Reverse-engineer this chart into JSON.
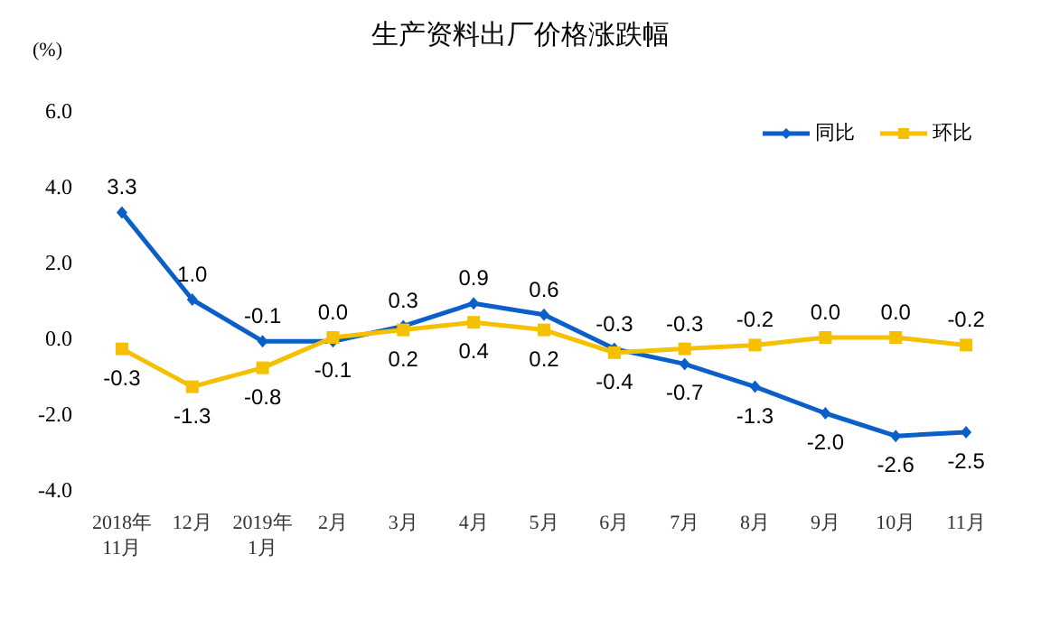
{
  "chart_data": {
    "type": "line",
    "title": "生产资料出厂价格涨跌幅",
    "ylabel": "(%)",
    "categories": [
      "2018年\n11月",
      "12月",
      "2019年\n1月",
      "2月",
      "3月",
      "4月",
      "5月",
      "6月",
      "7月",
      "8月",
      "9月",
      "10月",
      "11月"
    ],
    "series": [
      {
        "name": "同比",
        "color": "#0a5fc8",
        "marker": "diamond",
        "values": [
          3.3,
          1.0,
          -0.1,
          -0.1,
          0.3,
          0.9,
          0.6,
          -0.3,
          -0.7,
          -1.3,
          -2.0,
          -2.6,
          -2.5
        ],
        "value_labels": [
          "3.3",
          "1.0",
          "-0.1",
          "-0.1",
          "0.3",
          "0.9",
          "0.6",
          "-0.3",
          "-0.7",
          "-1.3",
          "-2.0",
          "-2.6",
          "-2.5"
        ]
      },
      {
        "name": "环比",
        "color": "#f5c000",
        "marker": "square",
        "values": [
          -0.3,
          -1.3,
          -0.8,
          0.0,
          0.2,
          0.4,
          0.2,
          -0.4,
          -0.3,
          -0.2,
          0.0,
          0.0,
          -0.2
        ],
        "value_labels": [
          "-0.3",
          "-1.3",
          "-0.8",
          "0.0",
          "0.2",
          "0.4",
          "0.2",
          "-0.4",
          "-0.3",
          "-0.2",
          "0.0",
          "0.0",
          "-0.2"
        ]
      }
    ],
    "ylim": [
      -4,
      6
    ],
    "yticks": [
      {
        "value": -4,
        "label": "-4.0"
      },
      {
        "value": -2,
        "label": "-2.0"
      },
      {
        "value": 0,
        "label": "0.0"
      },
      {
        "value": 2,
        "label": "2.0"
      },
      {
        "value": 4,
        "label": "4.0"
      },
      {
        "value": 6,
        "label": "6.0"
      }
    ],
    "legend": "top right",
    "line_style": "solid"
  }
}
